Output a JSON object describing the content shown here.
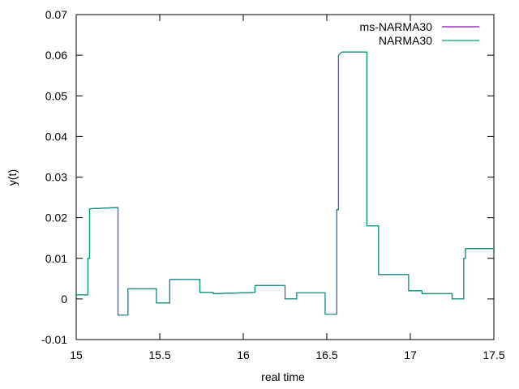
{
  "chart_data": {
    "type": "line",
    "title": "",
    "xlabel": "real time",
    "ylabel": "y(t)",
    "xlim": [
      15,
      17.5
    ],
    "ylim": [
      -0.01,
      0.07
    ],
    "xticks": [
      {
        "value": 15,
        "label": "15"
      },
      {
        "value": 15.5,
        "label": "15.5"
      },
      {
        "value": 16,
        "label": "16"
      },
      {
        "value": 16.5,
        "label": "16.5"
      },
      {
        "value": 17,
        "label": "17"
      },
      {
        "value": 17.5,
        "label": "17.5"
      }
    ],
    "yticks": [
      {
        "value": -0.01,
        "label": "-0.01"
      },
      {
        "value": 0,
        "label": "0"
      },
      {
        "value": 0.01,
        "label": "0.01"
      },
      {
        "value": 0.02,
        "label": "0.02"
      },
      {
        "value": 0.03,
        "label": "0.03"
      },
      {
        "value": 0.04,
        "label": "0.04"
      },
      {
        "value": 0.05,
        "label": "0.05"
      },
      {
        "value": 0.06,
        "label": "0.06"
      },
      {
        "value": 0.07,
        "label": "0.07"
      }
    ],
    "grid": false,
    "legend_position": "top-right",
    "series": [
      {
        "name": "ms-NARMA30",
        "color": "#9400d3",
        "x": [
          15.0,
          15.07,
          15.07,
          15.08,
          15.08,
          15.25,
          15.25,
          15.31,
          15.31,
          15.48,
          15.48,
          15.56,
          15.56,
          15.74,
          15.74,
          15.82,
          15.82,
          16.07,
          16.07,
          16.25,
          16.25,
          16.32,
          16.32,
          16.49,
          16.49,
          16.56,
          16.56,
          16.57,
          16.57,
          16.59,
          16.59,
          16.74,
          16.74,
          16.81,
          16.81,
          16.99,
          16.99,
          17.07,
          17.07,
          17.25,
          17.25,
          17.32,
          17.32,
          17.33,
          17.33,
          17.5
        ],
        "y": [
          0.001,
          0.001,
          0.01,
          0.01,
          0.0222,
          0.0225,
          -0.004,
          -0.004,
          0.0025,
          0.0025,
          -0.001,
          -0.001,
          0.0048,
          0.0048,
          0.0016,
          0.0016,
          0.0013,
          0.0016,
          0.0033,
          0.0033,
          0.0,
          0.0,
          0.0015,
          0.0015,
          -0.0038,
          -0.0038,
          0.022,
          0.022,
          0.06,
          0.0608,
          0.0608,
          0.0608,
          0.018,
          0.018,
          0.006,
          0.006,
          0.002,
          0.002,
          0.0013,
          0.0013,
          0.0,
          0.0,
          0.01,
          0.01,
          0.0124,
          0.0124
        ]
      },
      {
        "name": "NARMA30",
        "color": "#009e73",
        "x": [
          15.0,
          15.07,
          15.07,
          15.08,
          15.08,
          15.25,
          15.25,
          15.31,
          15.31,
          15.48,
          15.48,
          15.56,
          15.56,
          15.74,
          15.74,
          15.82,
          15.82,
          16.07,
          16.07,
          16.25,
          16.25,
          16.32,
          16.32,
          16.49,
          16.49,
          16.56,
          16.56,
          16.57,
          16.57,
          16.59,
          16.59,
          16.74,
          16.74,
          16.81,
          16.81,
          16.99,
          16.99,
          17.07,
          17.07,
          17.25,
          17.25,
          17.32,
          17.32,
          17.33,
          17.33,
          17.5
        ],
        "y": [
          0.001,
          0.001,
          0.01,
          0.01,
          0.0222,
          0.0225,
          -0.004,
          -0.004,
          0.0025,
          0.0025,
          -0.001,
          -0.001,
          0.0048,
          0.0048,
          0.0016,
          0.0016,
          0.0013,
          0.0016,
          0.0033,
          0.0033,
          0.0,
          0.0,
          0.0015,
          0.0015,
          -0.0038,
          -0.0038,
          0.022,
          0.022,
          0.06,
          0.0608,
          0.0608,
          0.0608,
          0.018,
          0.018,
          0.006,
          0.006,
          0.002,
          0.002,
          0.0013,
          0.0013,
          0.0,
          0.0,
          0.01,
          0.01,
          0.0124,
          0.0124
        ]
      }
    ]
  }
}
